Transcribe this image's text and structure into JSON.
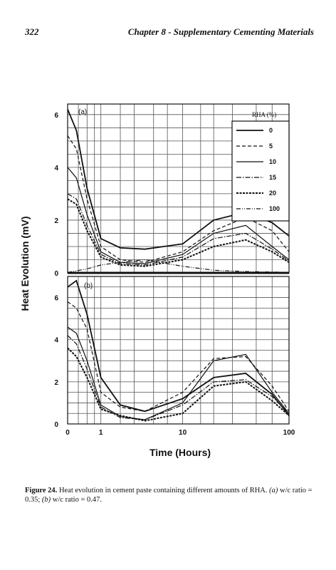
{
  "header": {
    "page_number": "322",
    "running_title": "Chapter 8 - Supplementary Cementing Materials"
  },
  "figure": {
    "ylabel": "Heat Evolution (mV)",
    "xlabel": "Time (Hours)",
    "panel_a_label": "(a)",
    "panel_b_label": "(b)",
    "legend_title": "RHA (%)",
    "x_ticks": [
      "0",
      "1",
      "10",
      "100"
    ],
    "a_y_ticks": [
      "0",
      "2",
      "4",
      "6"
    ],
    "b_y_ticks": [
      "0",
      "2",
      "4",
      "6"
    ]
  },
  "chart_data": [
    {
      "type": "line",
      "panel": "(a)",
      "xlabel": "Time (Hours)",
      "ylabel": "Heat Evolution (mV)",
      "x_axis": "log(1+t)",
      "x_ticks": [
        0,
        1,
        10,
        100
      ],
      "ylim": [
        0,
        6.4
      ],
      "y_ticks": [
        0,
        2,
        4,
        6
      ],
      "grid": true,
      "legend": {
        "title": "RHA (%)",
        "placement": "top-right"
      },
      "series": [
        {
          "name": "0",
          "style": "solid",
          "points": [
            [
              0,
              6.2
            ],
            [
              0.2,
              5.4
            ],
            [
              0.5,
              3.2
            ],
            [
              1,
              1.3
            ],
            [
              2,
              0.95
            ],
            [
              4,
              0.9
            ],
            [
              10,
              1.1
            ],
            [
              20,
              2.0
            ],
            [
              40,
              2.3
            ],
            [
              70,
              1.9
            ],
            [
              100,
              1.4
            ]
          ]
        },
        {
          "name": "5",
          "style": "dashed",
          "points": [
            [
              0,
              5.2
            ],
            [
              0.2,
              4.7
            ],
            [
              0.5,
              2.8
            ],
            [
              1,
              1.0
            ],
            [
              2,
              0.5
            ],
            [
              4,
              0.4
            ],
            [
              10,
              0.8
            ],
            [
              20,
              1.6
            ],
            [
              40,
              2.1
            ],
            [
              70,
              1.6
            ],
            [
              100,
              0.8
            ]
          ]
        },
        {
          "name": "10",
          "style": "solid",
          "points": [
            [
              0,
              4.0
            ],
            [
              0.2,
              3.6
            ],
            [
              0.5,
              2.2
            ],
            [
              1,
              0.8
            ],
            [
              2,
              0.4
            ],
            [
              4,
              0.35
            ],
            [
              10,
              0.7
            ],
            [
              20,
              1.5
            ],
            [
              40,
              1.8
            ],
            [
              70,
              1.0
            ],
            [
              100,
              0.5
            ]
          ]
        },
        {
          "name": "15",
          "style": "dashdot",
          "points": [
            [
              0,
              3.0
            ],
            [
              0.2,
              2.8
            ],
            [
              0.5,
              1.8
            ],
            [
              1,
              0.7
            ],
            [
              2,
              0.35
            ],
            [
              4,
              0.3
            ],
            [
              10,
              0.6
            ],
            [
              20,
              1.3
            ],
            [
              40,
              1.5
            ],
            [
              70,
              0.9
            ],
            [
              100,
              0.45
            ]
          ]
        },
        {
          "name": "20",
          "style": "dense-dash",
          "points": [
            [
              0,
              2.8
            ],
            [
              0.2,
              2.6
            ],
            [
              0.5,
              1.6
            ],
            [
              1,
              0.6
            ],
            [
              2,
              0.3
            ],
            [
              4,
              0.25
            ],
            [
              10,
              0.5
            ],
            [
              20,
              1.0
            ],
            [
              40,
              1.25
            ],
            [
              70,
              0.8
            ],
            [
              100,
              0.4
            ]
          ]
        },
        {
          "name": "100",
          "style": "dash-dot-dot",
          "points": [
            [
              0,
              0.02
            ],
            [
              0.5,
              0.15
            ],
            [
              1,
              0.3
            ],
            [
              2,
              0.4
            ],
            [
              4,
              0.5
            ],
            [
              10,
              0.25
            ],
            [
              20,
              0.1
            ],
            [
              40,
              0.05
            ],
            [
              100,
              0.02
            ]
          ]
        }
      ]
    },
    {
      "type": "line",
      "panel": "(b)",
      "xlabel": "Time (Hours)",
      "ylabel": "Heat Evolution (mV)",
      "x_axis": "log(1+t)",
      "x_ticks": [
        0,
        1,
        10,
        100
      ],
      "ylim": [
        0,
        7
      ],
      "y_ticks": [
        0,
        2,
        4,
        6
      ],
      "grid": true,
      "series": [
        {
          "name": "0",
          "style": "solid",
          "points": [
            [
              0,
              6.5
            ],
            [
              0.2,
              6.8
            ],
            [
              0.5,
              5.2
            ],
            [
              1,
              2.2
            ],
            [
              2,
              0.9
            ],
            [
              4,
              0.6
            ],
            [
              10,
              1.2
            ],
            [
              20,
              2.2
            ],
            [
              40,
              2.4
            ],
            [
              70,
              1.4
            ],
            [
              100,
              0.4
            ]
          ]
        },
        {
          "name": "5",
          "style": "dashed",
          "points": [
            [
              0,
              5.8
            ],
            [
              0.2,
              5.5
            ],
            [
              0.5,
              4.5
            ],
            [
              1,
              1.5
            ],
            [
              2,
              0.8
            ],
            [
              4,
              0.6
            ],
            [
              10,
              1.5
            ],
            [
              20,
              3.1
            ],
            [
              40,
              3.2
            ],
            [
              70,
              1.8
            ],
            [
              100,
              0.6
            ]
          ]
        },
        {
          "name": "10",
          "style": "solid",
          "points": [
            [
              0,
              4.6
            ],
            [
              0.2,
              4.3
            ],
            [
              0.5,
              3.0
            ],
            [
              1,
              0.9
            ],
            [
              2,
              0.35
            ],
            [
              4,
              0.2
            ],
            [
              10,
              1.0
            ],
            [
              20,
              3.0
            ],
            [
              40,
              3.3
            ],
            [
              70,
              1.5
            ],
            [
              100,
              0.5
            ]
          ]
        },
        {
          "name": "15",
          "style": "dashdot",
          "points": [
            [
              0,
              4.2
            ],
            [
              0.2,
              3.8
            ],
            [
              0.5,
              2.6
            ],
            [
              1,
              0.8
            ],
            [
              2,
              0.3
            ],
            [
              4,
              0.2
            ],
            [
              10,
              0.9
            ],
            [
              20,
              2.0
            ],
            [
              40,
              2.1
            ],
            [
              70,
              1.3
            ],
            [
              100,
              0.5
            ]
          ]
        },
        {
          "name": "20",
          "style": "dense-dash",
          "points": [
            [
              0,
              3.6
            ],
            [
              0.2,
              3.2
            ],
            [
              0.5,
              2.2
            ],
            [
              1,
              0.7
            ],
            [
              2,
              0.4
            ],
            [
              4,
              0.15
            ],
            [
              10,
              0.5
            ],
            [
              20,
              1.8
            ],
            [
              40,
              2.0
            ],
            [
              70,
              1.1
            ],
            [
              100,
              0.4
            ]
          ]
        }
      ]
    }
  ],
  "caption": {
    "label": "Figure 24.",
    "text": " Heat evolution in cement paste containing different amounts of RHA. ",
    "a_part": "(a)",
    "wc1": " w/c ratio = 0.35; ",
    "b_part": "(b)",
    "wc2": " w/c ratio = 0.47."
  }
}
